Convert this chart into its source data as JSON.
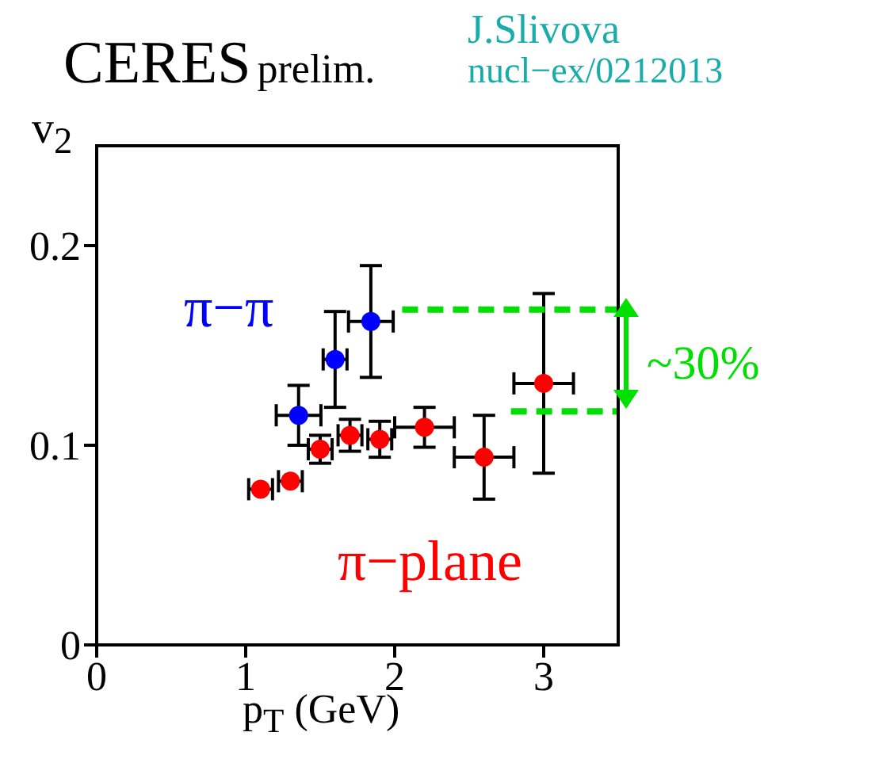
{
  "chart_data": {
    "type": "scatter",
    "title": "CERES",
    "subtitle": "prelim.",
    "xlabel": "p$_{T}$ (GeV)",
    "ylabel": "v$_{2}$",
    "annotations": [
      "J.Slivova",
      "nucl−ex/0212013",
      "~30%"
    ],
    "xlim": [
      0,
      3.5
    ],
    "xticks": [
      0,
      1,
      2,
      3
    ],
    "ylim": [
      0,
      0.25
    ],
    "yticks": [
      0,
      0.1,
      0.2
    ],
    "grid": false,
    "legend": false,
    "marker": "circle",
    "series": [
      {
        "name": "π−π",
        "color": "#0000ff",
        "x": [
          1.355,
          1.6,
          1.84
        ],
        "values": [
          0.115,
          0.143,
          0.162
        ],
        "errors": [
          0.015,
          0.024,
          0.028
        ],
        "xerrors": [
          0.15,
          0.08,
          0.15
        ]
      },
      {
        "name": "π−plane",
        "color": "#ff0000",
        "x": [
          1.1,
          1.3,
          1.5,
          1.7,
          1.9,
          2.2,
          2.6,
          3.0
        ],
        "values": [
          0.078,
          0.082,
          0.098,
          0.105,
          0.103,
          0.109,
          0.094,
          0.131
        ],
        "errors": [
          null,
          null,
          0.007,
          0.008,
          0.009,
          0.01,
          0.021,
          0.045
        ],
        "xerrors": [
          0.08,
          0.08,
          0.08,
          0.08,
          0.08,
          0.2,
          0.2,
          0.2
        ]
      },
      {
        "type": "line",
        "color": "#00e000",
        "line_style": "dashed",
        "marker": "none",
        "x": [
          2.05,
          3.5
        ],
        "values": [
          0.168,
          0.168
        ]
      },
      {
        "type": "line",
        "color": "#00e000",
        "line_style": "dashed",
        "marker": "none",
        "x": [
          2.78,
          3.5
        ],
        "values": [
          0.117,
          0.117
        ]
      }
    ]
  }
}
